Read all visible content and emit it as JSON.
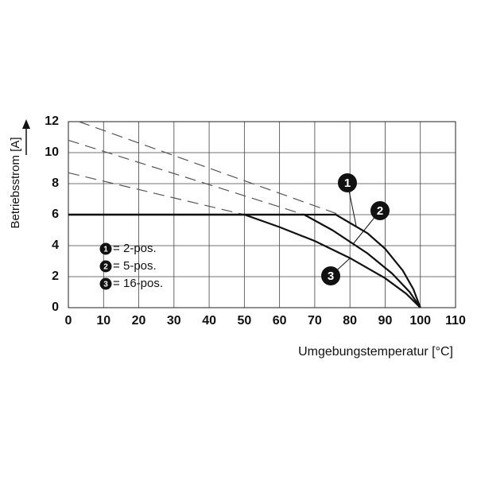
{
  "chart_data": {
    "type": "line",
    "x_label": "Umgebungstemperatur [°C]",
    "y_label": "Betriebsstrom [A]",
    "xlim": [
      0,
      110
    ],
    "ylim": [
      0,
      12
    ],
    "xticks": [
      0,
      10,
      20,
      30,
      40,
      50,
      60,
      70,
      80,
      90,
      100,
      110
    ],
    "yticks": [
      0,
      2,
      4,
      6,
      8,
      10,
      12
    ],
    "grid": true,
    "legend": "lower left",
    "legend_separator": "=",
    "series": [
      {
        "name": "2-pos.",
        "label": "1",
        "color": "#111111",
        "x": [
          0,
          76,
          85,
          90,
          95,
          98,
          100
        ],
        "values": [
          6,
          6,
          4.8,
          3.8,
          2.4,
          1.2,
          0
        ],
        "extrapolated": {
          "x": [
            3,
            77
          ],
          "values": [
            12,
            6
          ]
        }
      },
      {
        "name": "5-pos.",
        "label": "2",
        "color": "#111111",
        "x": [
          0,
          67,
          75,
          85,
          92,
          97,
          100
        ],
        "values": [
          6,
          6,
          5,
          3.5,
          2.2,
          1,
          0
        ],
        "extrapolated": {
          "x": [
            0,
            67
          ],
          "values": [
            10.8,
            6
          ]
        }
      },
      {
        "name": "16-pos.",
        "label": "3",
        "color": "#111111",
        "x": [
          0,
          50,
          60,
          70,
          80,
          90,
          96,
          100
        ],
        "values": [
          6,
          6,
          5.2,
          4.3,
          3.2,
          1.9,
          0.9,
          0
        ],
        "extrapolated": {
          "x": [
            0,
            50
          ],
          "values": [
            8.7,
            6
          ]
        }
      }
    ]
  }
}
